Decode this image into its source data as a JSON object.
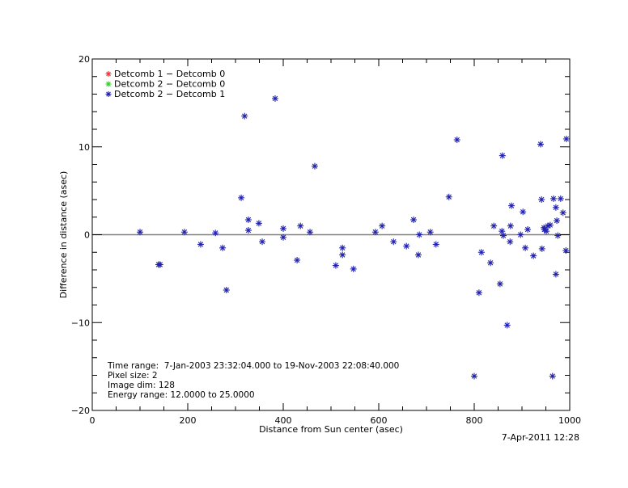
{
  "chart_data": {
    "type": "scatter",
    "title": "",
    "xlabel": "Distance from Sun center (asec)",
    "ylabel": "Difference in distance (asec)",
    "xlim": [
      0,
      1000
    ],
    "ylim": [
      -20,
      20
    ],
    "xticks": [
      0,
      200,
      400,
      600,
      800,
      1000
    ],
    "yticks": [
      -20,
      -10,
      0,
      10,
      20
    ],
    "x_minor_step": 50,
    "y_minor_step": 2,
    "grid": false,
    "reference_line": {
      "y": 0,
      "color": "#808080"
    },
    "legend_position": "upper-left",
    "series": [
      {
        "name": "Detcomb 1 − Detcomb 0",
        "color": "#ff3030",
        "marker": "asterisk",
        "points": []
      },
      {
        "name": "Detcomb 2 − Detcomb 0",
        "color": "#30d030",
        "marker": "asterisk",
        "points": []
      },
      {
        "name": "Detcomb 2 − Detcomb 1",
        "color": "#2020b0",
        "marker": "asterisk",
        "points": [
          [
            100,
            0.3
          ],
          [
            139,
            -3.4
          ],
          [
            142,
            -3.4
          ],
          [
            193,
            0.3
          ],
          [
            227,
            -1.1
          ],
          [
            258,
            0.2
          ],
          [
            273,
            -1.5
          ],
          [
            281,
            -6.3
          ],
          [
            312,
            4.2
          ],
          [
            319,
            13.5
          ],
          [
            327,
            1.7
          ],
          [
            327,
            0.5
          ],
          [
            349,
            1.3
          ],
          [
            356,
            -0.8
          ],
          [
            383,
            15.5
          ],
          [
            400,
            0.7
          ],
          [
            400,
            -0.3
          ],
          [
            429,
            -2.9
          ],
          [
            436,
            1.0
          ],
          [
            456,
            0.3
          ],
          [
            466,
            7.8
          ],
          [
            510,
            -3.5
          ],
          [
            524,
            -1.5
          ],
          [
            524,
            -2.3
          ],
          [
            547,
            -3.9
          ],
          [
            593,
            0.3
          ],
          [
            607,
            1.0
          ],
          [
            631,
            -0.8
          ],
          [
            658,
            -1.3
          ],
          [
            673,
            1.7
          ],
          [
            683,
            -2.3
          ],
          [
            685,
            0.0
          ],
          [
            708,
            0.3
          ],
          [
            720,
            -1.1
          ],
          [
            747,
            4.3
          ],
          [
            764,
            10.8
          ],
          [
            800,
            -16.1
          ],
          [
            810,
            -6.6
          ],
          [
            815,
            -2.0
          ],
          [
            834,
            -3.2
          ],
          [
            841,
            1.0
          ],
          [
            854,
            -5.6
          ],
          [
            858,
            0.4
          ],
          [
            859,
            9.0
          ],
          [
            861,
            -0.1
          ],
          [
            869,
            -10.3
          ],
          [
            875,
            -0.8
          ],
          [
            876,
            1.0
          ],
          [
            878,
            3.3
          ],
          [
            897,
            0.0
          ],
          [
            902,
            2.6
          ],
          [
            907,
            -1.5
          ],
          [
            912,
            0.6
          ],
          [
            924,
            -2.4
          ],
          [
            939,
            10.3
          ],
          [
            941,
            4.0
          ],
          [
            942,
            -1.6
          ],
          [
            946,
            0.8
          ],
          [
            947,
            0.6
          ],
          [
            951,
            0.4
          ],
          [
            954,
            1.0
          ],
          [
            959,
            1.1
          ],
          [
            964,
            -16.1
          ],
          [
            966,
            4.1
          ],
          [
            971,
            3.1
          ],
          [
            971,
            -4.5
          ],
          [
            973,
            1.6
          ],
          [
            975,
            -0.1
          ],
          [
            981,
            4.1
          ],
          [
            986,
            2.5
          ],
          [
            992,
            -1.8
          ],
          [
            993,
            10.9
          ]
        ]
      }
    ],
    "annotations": [
      "Time range:  7-Jan-2003 23:32:04.000 to 19-Nov-2003 22:08:40.000",
      "Pixel size: 2",
      "Image dim: 128",
      "Energy range: 12.0000 to 25.0000"
    ],
    "timestamp": "7-Apr-2011 12:28"
  },
  "plot": {
    "xlabel": "Distance from Sun center (asec)",
    "ylabel": "Difference in distance (asec)",
    "timestamp": "7-Apr-2011 12:28"
  }
}
